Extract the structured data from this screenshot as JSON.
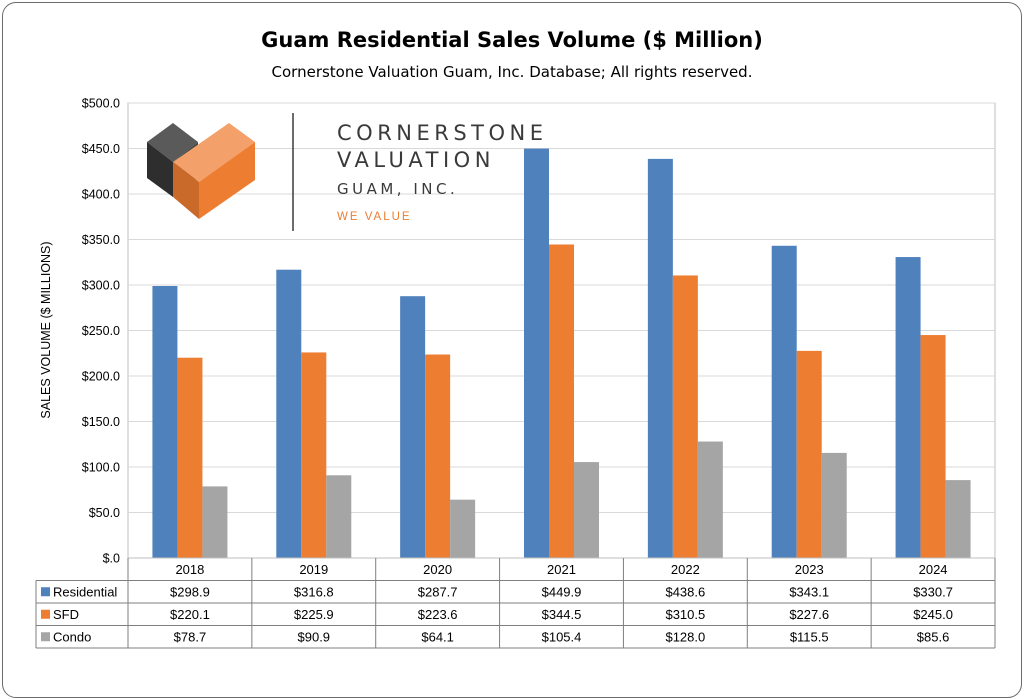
{
  "chart_data": {
    "type": "bar",
    "title": "Guam Residential Sales Volume ($ Million)",
    "subtitle": "Cornerstone Valuation Guam, Inc. Database; All rights reserved.",
    "ylabel": "SALES VOLUME ($ MILLIONS)",
    "xlabel": "",
    "ylim": [
      0,
      500
    ],
    "y_ticks": [
      "$.0",
      "$50.0",
      "$100.0",
      "$150.0",
      "$200.0",
      "$250.0",
      "$300.0",
      "$350.0",
      "$400.0",
      "$450.0",
      "$500.0"
    ],
    "categories": [
      "2018",
      "2019",
      "2020",
      "2021",
      "2022",
      "2023",
      "2024"
    ],
    "grid": true,
    "legend": "data-table",
    "series": [
      {
        "name": "Residential",
        "color": "#4f81bd",
        "values": [
          298.9,
          316.8,
          287.7,
          449.9,
          438.6,
          343.1,
          330.7
        ],
        "labels": [
          "$298.9",
          "$316.8",
          "$287.7",
          "$449.9",
          "$438.6",
          "$343.1",
          "$330.7"
        ]
      },
      {
        "name": "SFD",
        "color": "#ed7d31",
        "values": [
          220.1,
          225.9,
          223.6,
          344.5,
          310.5,
          227.6,
          245.0
        ],
        "labels": [
          "$220.1",
          "$225.9",
          "$223.6",
          "$344.5",
          "$310.5",
          "$227.6",
          "$245.0"
        ]
      },
      {
        "name": "Condo",
        "color": "#a5a5a5",
        "values": [
          78.7,
          90.9,
          64.1,
          105.4,
          128.0,
          115.5,
          85.6
        ],
        "labels": [
          "$78.7",
          "$90.9",
          "$64.1",
          "$105.4",
          "$128.0",
          "$115.5",
          "$85.6"
        ]
      }
    ]
  },
  "logo": {
    "line1": "CORNERSTONE",
    "line2": "VALUATION",
    "line3": "GUAM, INC.",
    "tagline": "WE VALUE",
    "colors": {
      "dark": "#3d3d3d",
      "orange": "#ed7d31",
      "light_orange": "#f4a06a",
      "tagline": "#ed7d31"
    }
  }
}
